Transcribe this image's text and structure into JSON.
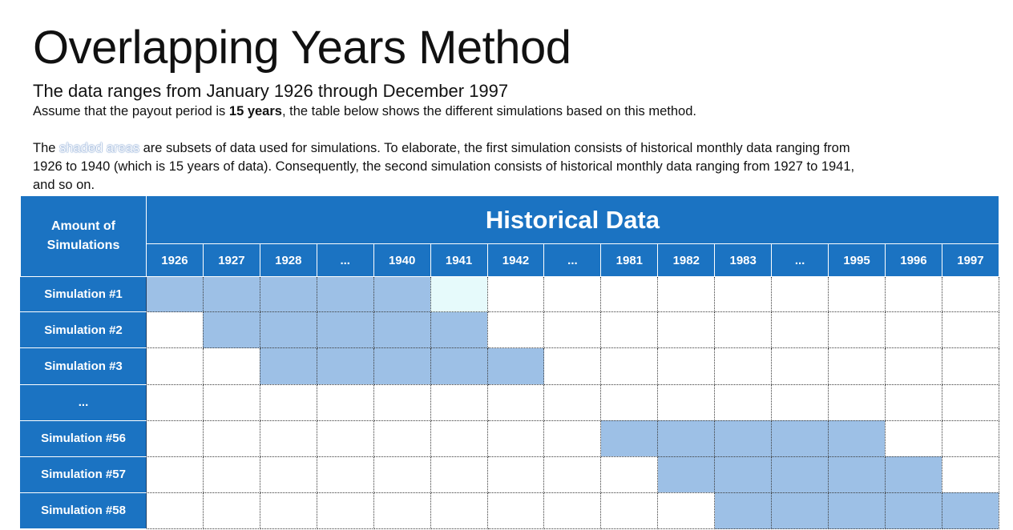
{
  "title": "Overlapping Years Method",
  "subtitle": "The data ranges from January 1926 through December 1997",
  "assumption": {
    "prefix": "Assume that the payout period is ",
    "bold": "15 years",
    "suffix": ", the table below shows the different simulations based on this method."
  },
  "explanation": {
    "prefix": "The ",
    "highlight": "shaded areas",
    "line1_rest": " are subsets of data used for simulations. To elaborate, the first simulation consists of historical monthly data ranging from",
    "line2": "1926 to 1940 (which is 15 years of data). Consequently, the second simulation consists of historical monthly data ranging from 1927 to 1941,",
    "line3": "and so on."
  },
  "table": {
    "corner_header": [
      "Amount of",
      "Simulations"
    ],
    "group_header": "Historical Data",
    "years": [
      "1926",
      "1927",
      "1928",
      "...",
      "1940",
      "1941",
      "1942",
      "...",
      "1981",
      "1982",
      "1983",
      "...",
      "1995",
      "1996",
      "1997"
    ],
    "colors": {
      "header_bg": "#1b73c2",
      "shaded": "#9dc0e6",
      "partial": "#e6fafb",
      "empty": "#ffffff"
    },
    "rows": [
      {
        "label": "Simulation #1",
        "cells": [
          1,
          1,
          1,
          1,
          1,
          2,
          0,
          0,
          0,
          0,
          0,
          0,
          0,
          0,
          0
        ]
      },
      {
        "label": "Simulation #2",
        "cells": [
          0,
          1,
          1,
          1,
          1,
          1,
          0,
          0,
          0,
          0,
          0,
          0,
          0,
          0,
          0
        ]
      },
      {
        "label": "Simulation #3",
        "cells": [
          0,
          0,
          1,
          1,
          1,
          1,
          1,
          0,
          0,
          0,
          0,
          0,
          0,
          0,
          0
        ]
      },
      {
        "label": "...",
        "cells": [
          0,
          0,
          0,
          0,
          0,
          0,
          0,
          0,
          0,
          0,
          0,
          0,
          0,
          0,
          0
        ]
      },
      {
        "label": "Simulation #56",
        "cells": [
          0,
          0,
          0,
          0,
          0,
          0,
          0,
          0,
          1,
          1,
          1,
          1,
          1,
          0,
          0
        ]
      },
      {
        "label": "Simulation #57",
        "cells": [
          0,
          0,
          0,
          0,
          0,
          0,
          0,
          0,
          0,
          1,
          1,
          1,
          1,
          1,
          0
        ]
      },
      {
        "label": "Simulation #58",
        "cells": [
          0,
          0,
          0,
          0,
          0,
          0,
          0,
          0,
          0,
          0,
          1,
          1,
          1,
          1,
          1
        ]
      }
    ]
  }
}
